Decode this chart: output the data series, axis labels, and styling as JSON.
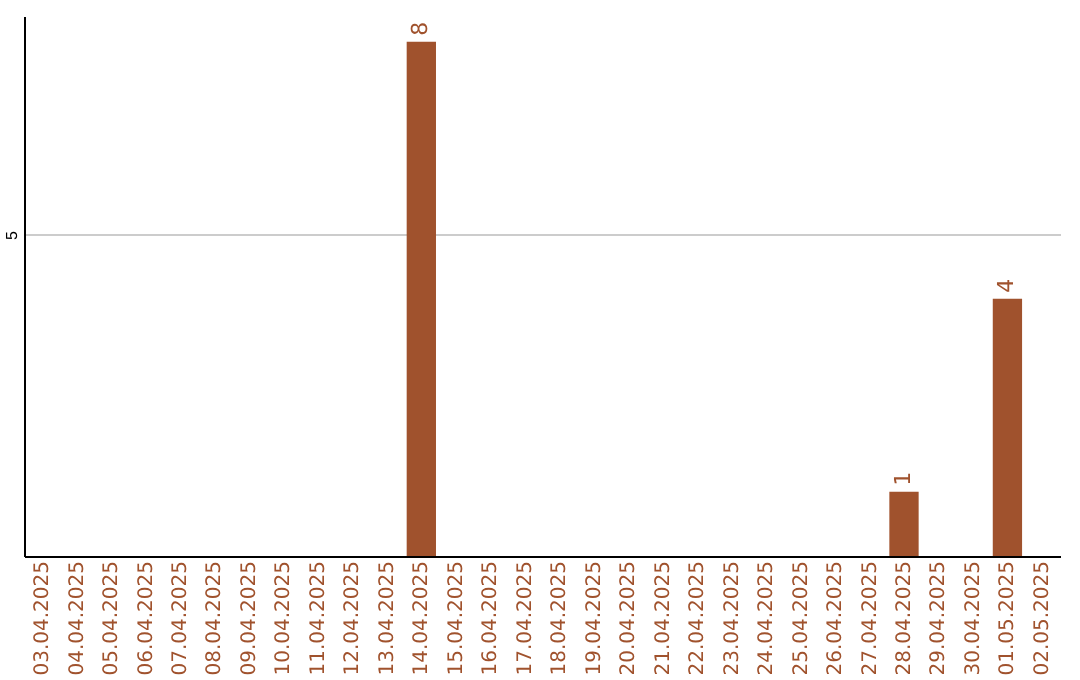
{
  "chart_data": {
    "type": "bar",
    "categories": [
      "03.04.2025",
      "04.04.2025",
      "05.04.2025",
      "06.04.2025",
      "07.04.2025",
      "08.04.2025",
      "09.04.2025",
      "10.04.2025",
      "11.04.2025",
      "12.04.2025",
      "13.04.2025",
      "14.04.2025",
      "15.04.2025",
      "16.04.2025",
      "17.04.2025",
      "18.04.2025",
      "19.04.2025",
      "20.04.2025",
      "21.04.2025",
      "22.04.2025",
      "23.04.2025",
      "24.04.2025",
      "25.04.2025",
      "26.04.2025",
      "27.04.2025",
      "28.04.2025",
      "29.04.2025",
      "30.04.2025",
      "01.05.2025",
      "02.05.2025"
    ],
    "values": [
      0,
      0,
      0,
      0,
      0,
      0,
      0,
      0,
      0,
      0,
      0,
      8,
      0,
      0,
      0,
      0,
      0,
      0,
      0,
      0,
      0,
      0,
      0,
      0,
      0,
      1,
      0,
      0,
      4,
      0
    ],
    "value_labels": [
      null,
      null,
      null,
      null,
      null,
      null,
      null,
      null,
      null,
      null,
      null,
      "8",
      null,
      null,
      null,
      null,
      null,
      null,
      null,
      null,
      null,
      null,
      null,
      null,
      null,
      "1",
      null,
      null,
      "4",
      null
    ],
    "color": "#a0522d",
    "ylim": [
      0,
      8.4
    ],
    "yticks": [
      5
    ],
    "grid": "y"
  }
}
